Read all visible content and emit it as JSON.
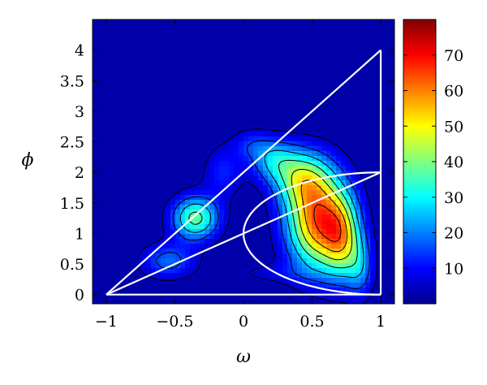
{
  "chart_data": {
    "type": "heatmap",
    "title": "",
    "xlabel": "ω",
    "ylabel": "ϕ",
    "xlim": [
      -1.1,
      1.1
    ],
    "ylim": [
      -0.15,
      4.5
    ],
    "xticks": [
      -1,
      -0.5,
      0,
      0.5,
      1
    ],
    "xtick_labels": [
      "−1",
      "−0.5",
      "0",
      "0.5",
      "1"
    ],
    "yticks": [
      0,
      0.5,
      1,
      1.5,
      2,
      2.5,
      3,
      3.5,
      4
    ],
    "ytick_labels": [
      "0",
      "0.5",
      "1",
      "1.5",
      "2",
      "2.5",
      "3",
      "3.5",
      "4"
    ],
    "colormap": "jet",
    "colorbar": {
      "range": [
        0,
        80
      ],
      "ticks": [
        10,
        20,
        30,
        40,
        50,
        60,
        70
      ],
      "tick_labels": [
        "10",
        "20",
        "30",
        "40",
        "50",
        "60",
        "70"
      ]
    },
    "background_color": "#0000a8",
    "density_blobs": [
      {
        "x": 0.55,
        "y": 1.2,
        "sx": 0.16,
        "sy": 0.55,
        "amp": 62
      },
      {
        "x": 0.72,
        "y": 0.9,
        "sx": 0.09,
        "sy": 0.45,
        "amp": 30
      },
      {
        "x": 0.42,
        "y": 1.9,
        "sx": 0.14,
        "sy": 0.32,
        "amp": 30
      },
      {
        "x": 0.22,
        "y": 2.2,
        "sx": 0.12,
        "sy": 0.25,
        "amp": 22
      },
      {
        "x": 0.85,
        "y": 0.45,
        "sx": 0.07,
        "sy": 0.35,
        "amp": 18
      },
      {
        "x": -0.35,
        "y": 1.25,
        "sx": 0.12,
        "sy": 0.25,
        "amp": 38
      },
      {
        "x": -0.55,
        "y": 0.55,
        "sx": 0.14,
        "sy": 0.2,
        "amp": 18
      },
      {
        "x": -0.15,
        "y": 2.0,
        "sx": 0.1,
        "sy": 0.3,
        "amp": 12
      },
      {
        "x": 0.05,
        "y": 2.45,
        "sx": 0.1,
        "sy": 0.18,
        "amp": 10
      },
      {
        "x": 0.2,
        "y": 0.35,
        "sx": 0.25,
        "sy": 0.12,
        "amp": 6
      }
    ],
    "contour_levels": [
      5,
      15,
      25,
      35,
      45,
      55,
      65
    ],
    "overlay_lines": [
      {
        "name": "",
        "points": [
          [
            -1,
            0
          ],
          [
            1,
            4
          ]
        ]
      },
      {
        "name": "",
        "points": [
          [
            -1,
            0
          ],
          [
            1,
            2
          ]
        ]
      },
      {
        "name": "",
        "points": [
          [
            -1,
            0
          ],
          [
            1,
            0
          ]
        ]
      },
      {
        "name": "",
        "points": [
          [
            1,
            0
          ],
          [
            1,
            4
          ]
        ]
      }
    ],
    "overlay_ellipse": {
      "cx": 1,
      "cy": 1,
      "rx": 1,
      "ry": 1,
      "half": "left"
    },
    "overlay_color": "#ffffff"
  }
}
